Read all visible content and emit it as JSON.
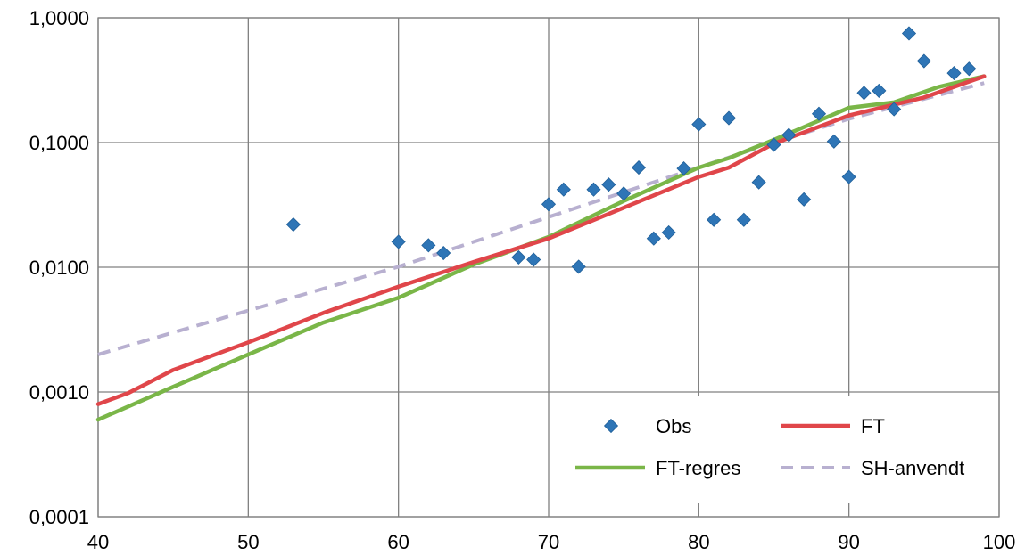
{
  "chart_data": {
    "type": "scatter",
    "x_scale": "linear",
    "y_scale": "log",
    "xlim": [
      40,
      100
    ],
    "ylim": [
      0.0001,
      1
    ],
    "x_ticks": [
      {
        "value": 40,
        "label": "40"
      },
      {
        "value": 50,
        "label": "50"
      },
      {
        "value": 60,
        "label": "60"
      },
      {
        "value": 70,
        "label": "70"
      },
      {
        "value": 80,
        "label": "80"
      },
      {
        "value": 90,
        "label": "90"
      },
      {
        "value": 100,
        "label": "100"
      }
    ],
    "y_ticks": [
      {
        "value": 1,
        "label": "1,0000"
      },
      {
        "value": 0.1,
        "label": "0,1000"
      },
      {
        "value": 0.01,
        "label": "0,0100"
      },
      {
        "value": 0.001,
        "label": "0,0010"
      },
      {
        "value": 0.0001,
        "label": "0,0001"
      }
    ],
    "grid": true,
    "legend_position": "bottom-right",
    "series": [
      {
        "name": "Obs",
        "kind": "markers",
        "marker": "diamond",
        "color": "#2E75B6",
        "points": [
          [
            53,
            0.022
          ],
          [
            60,
            0.016
          ],
          [
            62,
            0.015
          ],
          [
            63,
            0.013
          ],
          [
            68,
            0.012
          ],
          [
            69,
            0.0115
          ],
          [
            70,
            0.032
          ],
          [
            71,
            0.042
          ],
          [
            72,
            0.0101
          ],
          [
            73,
            0.042
          ],
          [
            74,
            0.046
          ],
          [
            75,
            0.039
          ],
          [
            76,
            0.063
          ],
          [
            77,
            0.017
          ],
          [
            78,
            0.019
          ],
          [
            79,
            0.062
          ],
          [
            80,
            0.14
          ],
          [
            81,
            0.024
          ],
          [
            82,
            0.157
          ],
          [
            83,
            0.024
          ],
          [
            84,
            0.048
          ],
          [
            85,
            0.096
          ],
          [
            86,
            0.115
          ],
          [
            87,
            0.035
          ],
          [
            88,
            0.17
          ],
          [
            89,
            0.102
          ],
          [
            90,
            0.053
          ],
          [
            91,
            0.25
          ],
          [
            92,
            0.26
          ],
          [
            93,
            0.185
          ],
          [
            94,
            0.75
          ],
          [
            95,
            0.45
          ],
          [
            97,
            0.36
          ],
          [
            98,
            0.39
          ]
        ]
      },
      {
        "name": "FT",
        "kind": "line",
        "style": "solid",
        "color": "#E0464A",
        "points": [
          [
            40,
            0.0008
          ],
          [
            42,
            0.00098
          ],
          [
            45,
            0.0015
          ],
          [
            50,
            0.0025
          ],
          [
            55,
            0.0043
          ],
          [
            60,
            0.007
          ],
          [
            65,
            0.011
          ],
          [
            70,
            0.017
          ],
          [
            75,
            0.03
          ],
          [
            80,
            0.053
          ],
          [
            82,
            0.063
          ],
          [
            85,
            0.098
          ],
          [
            90,
            0.165
          ],
          [
            95,
            0.23
          ],
          [
            99,
            0.34
          ]
        ]
      },
      {
        "name": "FT-regres",
        "kind": "line",
        "style": "solid",
        "color": "#7AB648",
        "points": [
          [
            40,
            0.0006
          ],
          [
            45,
            0.0011
          ],
          [
            50,
            0.002
          ],
          [
            55,
            0.0036
          ],
          [
            60,
            0.0057
          ],
          [
            65,
            0.0105
          ],
          [
            70,
            0.0175
          ],
          [
            75,
            0.034
          ],
          [
            80,
            0.063
          ],
          [
            82,
            0.075
          ],
          [
            85,
            0.105
          ],
          [
            90,
            0.19
          ],
          [
            93,
            0.21
          ],
          [
            96,
            0.28
          ],
          [
            99,
            0.34
          ]
        ]
      },
      {
        "name": "SH-anvendt",
        "kind": "line",
        "style": "dashed",
        "color": "#B8B0D0",
        "points": [
          [
            40,
            0.002
          ],
          [
            60,
            0.0101
          ],
          [
            75,
            0.04
          ],
          [
            85,
            0.1
          ],
          [
            90,
            0.155
          ],
          [
            99,
            0.3
          ]
        ]
      }
    ],
    "legend": [
      {
        "name": "Obs",
        "label": "Obs"
      },
      {
        "name": "FT",
        "label": "FT"
      },
      {
        "name": "FT-regres",
        "label": "FT-regres"
      },
      {
        "name": "SH-anvendt",
        "label": "SH-anvendt"
      }
    ]
  }
}
